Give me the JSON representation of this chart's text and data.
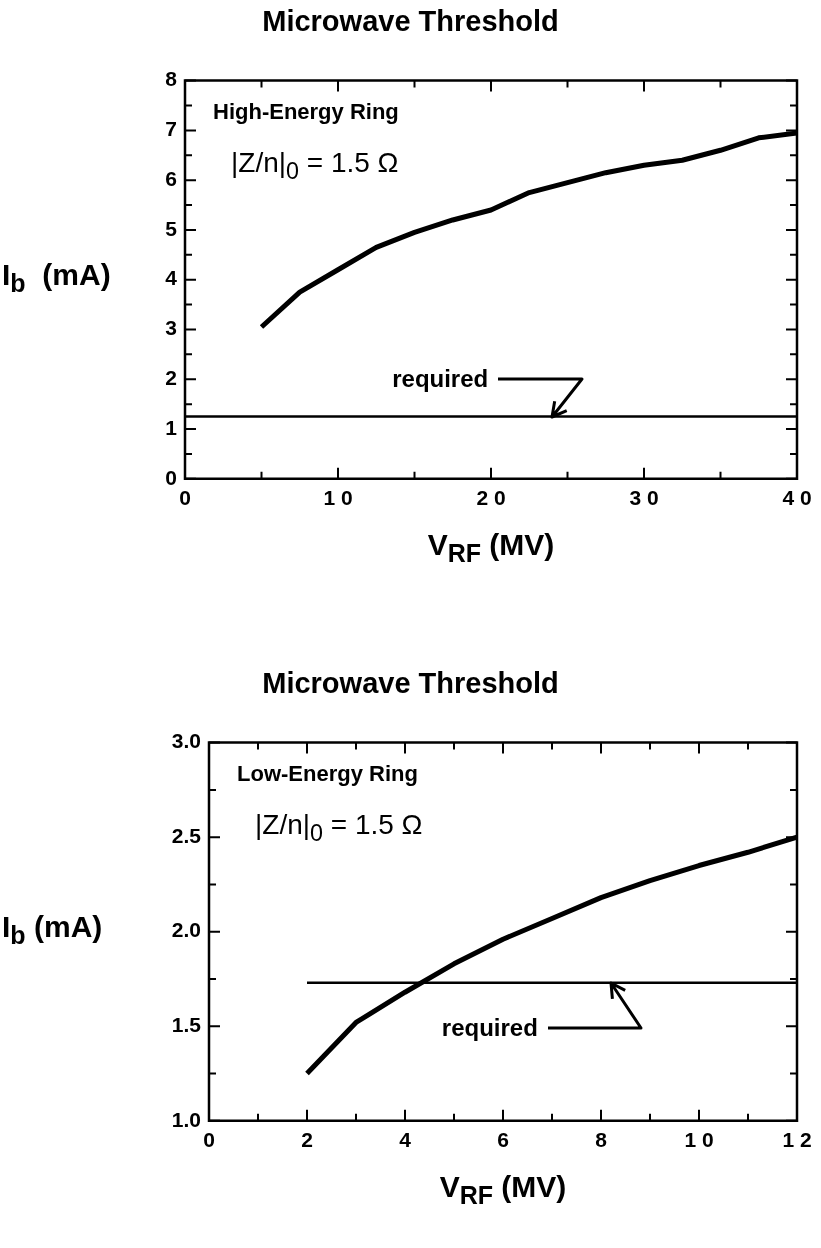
{
  "chart_data": [
    {
      "type": "line",
      "title": "Microwave Threshold",
      "xlabel": "V$_{RF}$ (MV)",
      "ylabel": "I$_{b}$  (mA)",
      "annotations": [
        "High-Energy Ring",
        "|Z/n|$_{0}$ = 1.5 Ω",
        {
          "text": "required",
          "x": 24,
          "y": 1.25
        }
      ],
      "series": [
        {
          "color": "#000000",
          "x": [
            5,
            7.5,
            10,
            12.5,
            15,
            17.5,
            20,
            22.5,
            25,
            27.5,
            30,
            32.5,
            35,
            37.5,
            40
          ],
          "values": [
            3.05,
            3.75,
            4.2,
            4.65,
            4.95,
            5.2,
            5.4,
            5.75,
            5.95,
            6.15,
            6.3,
            6.4,
            6.6,
            6.85,
            6.95
          ]
        },
        {
          "color": "#000000",
          "x": [
            0,
            40
          ],
          "values": [
            1.25,
            1.25
          ]
        }
      ],
      "xlim": [
        0,
        40
      ],
      "xticks": [
        0,
        {
          "value": 5,
          "label": null
        },
        10,
        {
          "value": 15,
          "label": null
        },
        20,
        {
          "value": 25,
          "label": null
        },
        30,
        {
          "value": 35,
          "label": null
        },
        40
      ],
      "ylim": [
        0,
        8
      ],
      "yticks": [
        0,
        {
          "value": 0.5,
          "label": null
        },
        1,
        {
          "value": 1.5,
          "label": null
        },
        2,
        {
          "value": 2.5,
          "label": null
        },
        3,
        {
          "value": 3.5,
          "label": null
        },
        4,
        {
          "value": 4.5,
          "label": null
        },
        5,
        {
          "value": 5.5,
          "label": null
        },
        6,
        {
          "value": 6.5,
          "label": null
        },
        7,
        {
          "value": 7.5,
          "label": null
        },
        8
      ],
      "grid": false,
      "legend": false,
      "marker": "none",
      "line_style": "solid"
    },
    {
      "type": "line",
      "title": "Microwave Threshold",
      "xlabel": "V$_{RF}$ (MV)",
      "ylabel": "I$_{b}$ (mA)",
      "annotations": [
        "Low-Energy Ring",
        "|Z/n|$_{0}$ =  1.5 Ω",
        {
          "text": "required",
          "x": 8.2,
          "y": 1.73
        }
      ],
      "series": [
        {
          "color": "#000000",
          "x": [
            2,
            3,
            4,
            5,
            6,
            7,
            8,
            9,
            10,
            11,
            12
          ],
          "values": [
            1.25,
            1.52,
            1.68,
            1.83,
            1.96,
            2.07,
            2.18,
            2.27,
            2.35,
            2.42,
            2.5
          ]
        },
        {
          "color": "#000000",
          "x": [
            2,
            12
          ],
          "values": [
            1.73,
            1.73
          ]
        }
      ],
      "xlim": [
        0,
        12
      ],
      "xticks": [
        0,
        {
          "value": 1,
          "label": null
        },
        2,
        {
          "value": 3,
          "label": null
        },
        4,
        {
          "value": 5,
          "label": null
        },
        6,
        {
          "value": 7,
          "label": null
        },
        8,
        {
          "value": 9,
          "label": null
        },
        10,
        {
          "value": 11,
          "label": null
        },
        12
      ],
      "ylim": [
        1,
        3
      ],
      "yticks": [
        {
          "value": 1,
          "label": "1.0"
        },
        {
          "value": 1.25,
          "label": null
        },
        {
          "value": 1.5,
          "label": "1.5"
        },
        {
          "value": 1.75,
          "label": null
        },
        {
          "value": 2,
          "label": "2.0"
        },
        {
          "value": 2.25,
          "label": null
        },
        {
          "value": 2.5,
          "label": "2.5"
        },
        {
          "value": 2.75,
          "label": null
        },
        {
          "value": 3,
          "label": "3.0"
        }
      ],
      "grid": false,
      "legend": false,
      "marker": "none",
      "line_style": "solid"
    }
  ]
}
